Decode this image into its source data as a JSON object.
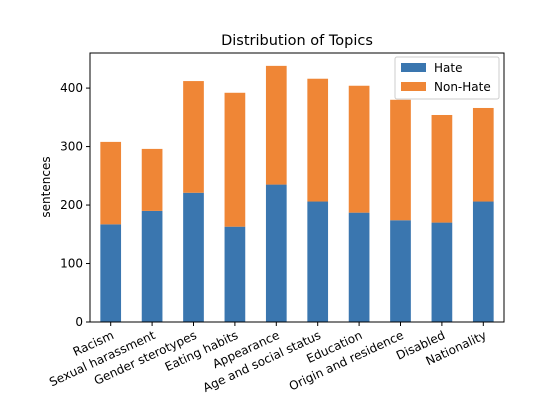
{
  "chart_data": {
    "type": "bar",
    "stacked": true,
    "title": "Distribution of Topics",
    "xlabel": "",
    "ylabel": "sentences",
    "ylim": [
      0,
      460
    ],
    "yticks": [
      0,
      100,
      200,
      300,
      400
    ],
    "categories": [
      "Racism",
      "Sexual harassment",
      "Gender sterotypes",
      "Eating habits",
      "Appearance",
      "Age and social status",
      "Education",
      "Origin and residence",
      "Disabled",
      "Nationality"
    ],
    "series": [
      {
        "name": "Hate",
        "color": "#3a76af",
        "values": [
          167,
          190,
          221,
          163,
          235,
          206,
          187,
          174,
          170,
          206
        ]
      },
      {
        "name": "Non-Hate",
        "color": "#ef8636",
        "values": [
          141,
          106,
          191,
          229,
          203,
          210,
          217,
          206,
          184,
          160
        ]
      }
    ],
    "legend": "top-right",
    "grid": false
  }
}
